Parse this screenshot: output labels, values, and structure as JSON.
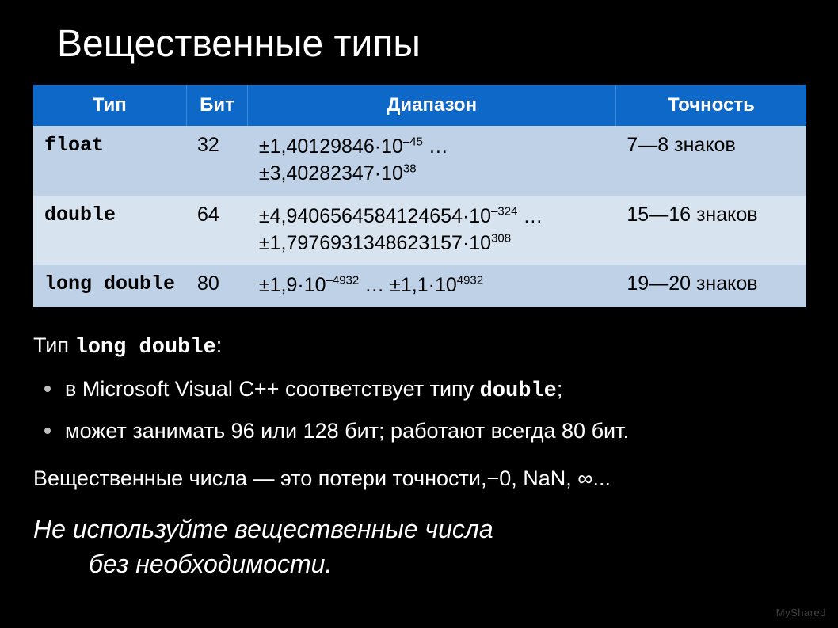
{
  "title": "Вещественные типы",
  "table": {
    "headers": {
      "type": "Тип",
      "bits": "Бит",
      "range": "Диапазон",
      "precision": "Точность"
    },
    "row_colors": {
      "a": "#bed1e6",
      "b": "#d8e3f0"
    },
    "header_bg": "#0e68c8",
    "rows": [
      {
        "type": "float",
        "bits": "32",
        "range_html": "±1,40129846·10<sup>–45</sup> … ±3,40282347·10<sup>38</sup>",
        "precision": "7—8 знаков"
      },
      {
        "type": "double",
        "bits": "64",
        "range_html": "±4,9406564584124654·10<sup>–324</sup> … ±1,7976931348623157·10<sup>308</sup>",
        "precision": "15—16 знаков"
      },
      {
        "type": "long double",
        "bits": "80",
        "range_html": "±1,9·10<sup>–4932</sup> … ±1,1·10<sup>4932</sup>",
        "precision": "19—20 знаков"
      }
    ]
  },
  "body": {
    "para1_prefix": "Тип ",
    "para1_code": "long double",
    "para1_suffix": ":",
    "bullet1_prefix": "в Microsoft Visual C++ соответствует типу ",
    "bullet1_code": "double",
    "bullet1_suffix": ";",
    "bullet2": "может занимать 96 или 128 бит; работают всегда 80 бит.",
    "para2": "Вещественные числа — это потери точности,−0, NaN, ∞...",
    "emph_l1": "Не используйте вещественные числа",
    "emph_l2": "без необходимости."
  },
  "watermark": "MyShared"
}
